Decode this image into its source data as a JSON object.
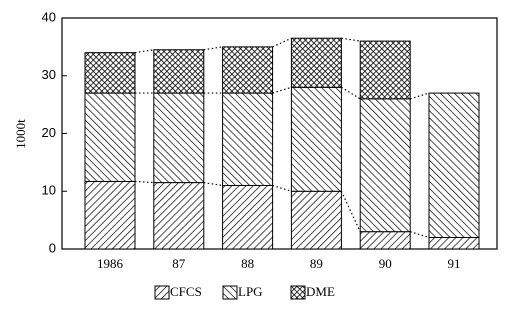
{
  "chart_data": {
    "type": "stacked_bar",
    "categories": [
      "1986",
      "87",
      "88",
      "89",
      "90",
      "91"
    ],
    "y_label": "1000t",
    "ylim": [
      0,
      40
    ],
    "yticks": [
      0,
      10,
      20,
      30,
      40
    ],
    "series": [
      {
        "name": "CFCS",
        "color": "#000000",
        "pattern": "forward-hatch",
        "values": [
          11.7,
          11.5,
          11,
          10,
          3,
          2
        ]
      },
      {
        "name": "LPG",
        "color": "#000000",
        "pattern": "back-hatch",
        "values": [
          15.3,
          15.5,
          16,
          18,
          23,
          25
        ]
      },
      {
        "name": "DME",
        "color": "#000000",
        "pattern": "cross-hatch",
        "values": [
          7,
          7.5,
          8,
          8.5,
          10,
          null
        ]
      }
    ],
    "connectors": true,
    "legend": "bottom"
  }
}
